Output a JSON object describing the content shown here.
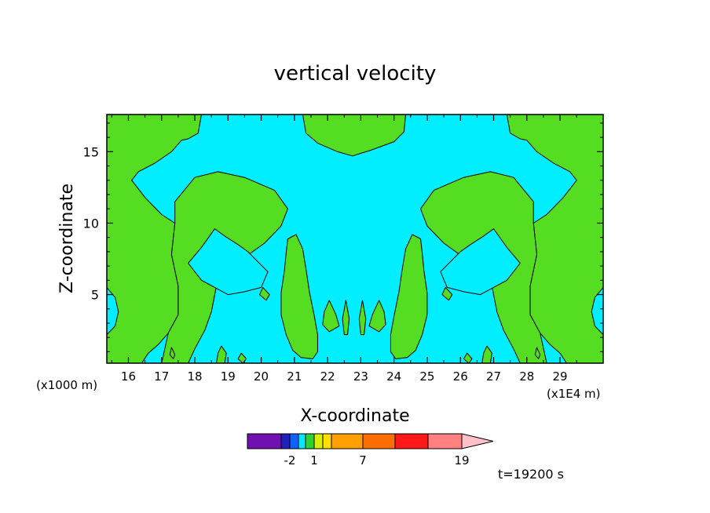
{
  "chart_data": {
    "type": "heatmap",
    "title": "vertical velocity",
    "xlabel": "X-coordinate",
    "ylabel": "Z-coordinate",
    "xlim": [
      15.35,
      30.3
    ],
    "ylim": [
      0.2,
      17.6
    ],
    "x_ticks": [
      16,
      17,
      18,
      19,
      20,
      21,
      22,
      23,
      24,
      25,
      26,
      27,
      28,
      29
    ],
    "x_tick_labels": [
      "16",
      "17",
      "18",
      "19",
      "20",
      "21",
      "22",
      "23",
      "24",
      "25",
      "26",
      "27",
      "28",
      "29"
    ],
    "y_ticks": [
      5,
      10,
      15
    ],
    "y_tick_labels": [
      "5",
      "10",
      "15"
    ],
    "x_unit_label": "(x1E4 m)",
    "y_unit_label": "(x1000 m)",
    "time_label": "t=19200 s",
    "colorbar": {
      "colors": [
        "#7010b0",
        "#2020c0",
        "#1060ff",
        "#00e8ff",
        "#30d030",
        "#d8f000",
        "#ffe000",
        "#ffa000",
        "#ff6e00",
        "#ff1818",
        "#ff8080",
        "#ffc0c8"
      ],
      "tick_labels": [
        "-2",
        "1",
        "7",
        "19"
      ]
    },
    "field_colors": {
      "cyan": "#00eeff",
      "green": "#55dd22"
    },
    "regions": [
      {
        "color": "green",
        "pts": [
          [
            15.35,
            17.6
          ],
          [
            18.2,
            17.6
          ],
          [
            18.1,
            16.3
          ],
          [
            17.8,
            15.9
          ],
          [
            17.6,
            15.8
          ],
          [
            17.3,
            15.0
          ],
          [
            16.8,
            14.2
          ],
          [
            16.3,
            13.6
          ],
          [
            16.1,
            13.0
          ],
          [
            16.5,
            11.8
          ],
          [
            17.0,
            10.6
          ],
          [
            17.4,
            10.0
          ],
          [
            17.3,
            7.8
          ],
          [
            17.5,
            5.6
          ],
          [
            17.5,
            3.6
          ],
          [
            17.2,
            2.3
          ],
          [
            16.9,
            1.5
          ],
          [
            16.6,
            0.9
          ],
          [
            16.4,
            0.2
          ],
          [
            15.35,
            0.2
          ]
        ]
      },
      {
        "color": "green",
        "pts": [
          [
            30.3,
            17.6
          ],
          [
            27.4,
            17.6
          ],
          [
            27.5,
            16.3
          ],
          [
            27.8,
            15.9
          ],
          [
            28.0,
            15.8
          ],
          [
            28.3,
            15.0
          ],
          [
            28.8,
            14.2
          ],
          [
            29.3,
            13.6
          ],
          [
            29.5,
            13.0
          ],
          [
            29.1,
            11.8
          ],
          [
            28.6,
            10.6
          ],
          [
            28.2,
            10.0
          ],
          [
            28.3,
            7.8
          ],
          [
            28.1,
            5.6
          ],
          [
            28.1,
            3.6
          ],
          [
            28.4,
            2.3
          ],
          [
            28.7,
            1.5
          ],
          [
            29.0,
            0.9
          ],
          [
            29.2,
            0.2
          ],
          [
            30.3,
            0.2
          ]
        ]
      },
      {
        "color": "cyan",
        "pts": [
          [
            15.35,
            5.5
          ],
          [
            15.6,
            4.8
          ],
          [
            15.7,
            3.8
          ],
          [
            15.6,
            2.8
          ],
          [
            15.35,
            2.2
          ]
        ]
      },
      {
        "color": "cyan",
        "pts": [
          [
            30.3,
            5.5
          ],
          [
            30.05,
            4.8
          ],
          [
            29.95,
            3.8
          ],
          [
            30.05,
            2.8
          ],
          [
            30.3,
            2.2
          ]
        ]
      },
      {
        "color": "green",
        "pts": [
          [
            17.4,
            11.5
          ],
          [
            18.0,
            13.2
          ],
          [
            18.7,
            13.6
          ],
          [
            19.5,
            13.2
          ],
          [
            20.4,
            12.3
          ],
          [
            20.8,
            11.0
          ],
          [
            20.6,
            9.8
          ],
          [
            20.1,
            8.6
          ],
          [
            19.5,
            7.6
          ],
          [
            18.9,
            7.0
          ],
          [
            18.7,
            6.2
          ],
          [
            18.6,
            5.0
          ],
          [
            18.5,
            3.8
          ],
          [
            18.3,
            2.5
          ],
          [
            18.0,
            1.2
          ],
          [
            17.8,
            0.2
          ],
          [
            17.0,
            0.2
          ],
          [
            17.2,
            2.3
          ],
          [
            17.5,
            3.6
          ],
          [
            17.5,
            5.6
          ],
          [
            17.3,
            7.8
          ],
          [
            17.4,
            10.0
          ]
        ]
      },
      {
        "color": "green",
        "pts": [
          [
            28.2,
            11.5
          ],
          [
            27.6,
            13.2
          ],
          [
            26.9,
            13.6
          ],
          [
            26.1,
            13.2
          ],
          [
            25.2,
            12.3
          ],
          [
            24.8,
            11.0
          ],
          [
            25.0,
            9.8
          ],
          [
            25.5,
            8.6
          ],
          [
            26.1,
            7.6
          ],
          [
            26.7,
            7.0
          ],
          [
            26.9,
            6.2
          ],
          [
            27.0,
            5.0
          ],
          [
            27.1,
            3.8
          ],
          [
            27.3,
            2.5
          ],
          [
            27.6,
            1.2
          ],
          [
            27.8,
            0.2
          ],
          [
            28.6,
            0.2
          ],
          [
            28.4,
            2.3
          ],
          [
            28.1,
            3.6
          ],
          [
            28.1,
            5.6
          ],
          [
            28.3,
            7.8
          ],
          [
            28.2,
            10.0
          ]
        ]
      },
      {
        "color": "cyan",
        "pts": [
          [
            17.8,
            7.2
          ],
          [
            18.2,
            8.3
          ],
          [
            18.6,
            9.6
          ],
          [
            18.9,
            9.1
          ],
          [
            19.3,
            8.5
          ],
          [
            19.6,
            8.0
          ],
          [
            19.9,
            7.3
          ],
          [
            20.2,
            6.6
          ],
          [
            20.0,
            5.5
          ],
          [
            19.5,
            5.2
          ],
          [
            19.0,
            5.0
          ],
          [
            18.6,
            5.5
          ],
          [
            18.2,
            6.0
          ]
        ]
      },
      {
        "color": "cyan",
        "pts": [
          [
            27.8,
            7.2
          ],
          [
            27.4,
            8.3
          ],
          [
            27.0,
            9.6
          ],
          [
            26.7,
            9.1
          ],
          [
            26.3,
            8.5
          ],
          [
            26.0,
            8.0
          ],
          [
            25.7,
            7.3
          ],
          [
            25.4,
            6.6
          ],
          [
            25.6,
            5.5
          ],
          [
            26.1,
            5.2
          ],
          [
            26.6,
            5.0
          ],
          [
            27.0,
            5.5
          ],
          [
            27.4,
            6.0
          ]
        ]
      },
      {
        "color": "green",
        "pts": [
          [
            21.25,
            17.6
          ],
          [
            24.35,
            17.6
          ],
          [
            24.3,
            16.4
          ],
          [
            24.0,
            15.7
          ],
          [
            23.3,
            15.1
          ],
          [
            22.75,
            14.7
          ],
          [
            22.3,
            15.0
          ],
          [
            21.7,
            15.6
          ],
          [
            21.35,
            16.3
          ]
        ]
      },
      {
        "color": "green",
        "pts": [
          [
            20.8,
            8.9
          ],
          [
            21.05,
            9.2
          ],
          [
            21.25,
            8.2
          ],
          [
            21.35,
            6.8
          ],
          [
            21.45,
            5.2
          ],
          [
            21.6,
            3.5
          ],
          [
            21.7,
            2.2
          ],
          [
            21.7,
            1.0
          ],
          [
            21.55,
            0.5
          ],
          [
            21.2,
            0.6
          ],
          [
            20.95,
            1.1
          ],
          [
            20.75,
            2.2
          ],
          [
            20.6,
            3.6
          ],
          [
            20.6,
            5.1
          ],
          [
            20.7,
            6.7
          ],
          [
            20.75,
            7.9
          ]
        ]
      },
      {
        "color": "green",
        "pts": [
          [
            24.8,
            8.9
          ],
          [
            24.55,
            9.2
          ],
          [
            24.35,
            8.2
          ],
          [
            24.25,
            6.8
          ],
          [
            24.15,
            5.2
          ],
          [
            24.0,
            3.5
          ],
          [
            23.9,
            2.2
          ],
          [
            23.9,
            1.0
          ],
          [
            24.05,
            0.5
          ],
          [
            24.4,
            0.6
          ],
          [
            24.65,
            1.1
          ],
          [
            24.85,
            2.2
          ],
          [
            25.0,
            3.6
          ],
          [
            25.0,
            5.1
          ],
          [
            24.9,
            6.7
          ],
          [
            24.85,
            7.9
          ]
        ]
      },
      {
        "color": "green",
        "pts": [
          [
            22.05,
            4.6
          ],
          [
            22.25,
            3.6
          ],
          [
            22.35,
            2.8
          ],
          [
            22.05,
            2.4
          ],
          [
            21.85,
            2.9
          ],
          [
            21.9,
            3.8
          ]
        ]
      },
      {
        "color": "green",
        "pts": [
          [
            23.55,
            4.6
          ],
          [
            23.35,
            3.6
          ],
          [
            23.25,
            2.8
          ],
          [
            23.55,
            2.4
          ],
          [
            23.75,
            2.9
          ],
          [
            23.7,
            3.8
          ]
        ]
      },
      {
        "color": "green",
        "pts": [
          [
            22.55,
            4.6
          ],
          [
            22.65,
            3.3
          ],
          [
            22.6,
            2.2
          ],
          [
            22.5,
            2.2
          ],
          [
            22.45,
            3.3
          ]
        ]
      },
      {
        "color": "green",
        "pts": [
          [
            23.05,
            4.6
          ],
          [
            23.15,
            3.3
          ],
          [
            23.1,
            2.2
          ],
          [
            23.0,
            2.2
          ],
          [
            22.95,
            3.3
          ]
        ]
      },
      {
        "color": "green",
        "pts": [
          [
            20.05,
            5.5
          ],
          [
            20.25,
            5.0
          ],
          [
            20.15,
            4.6
          ],
          [
            19.95,
            5.0
          ]
        ]
      },
      {
        "color": "green",
        "pts": [
          [
            25.55,
            5.5
          ],
          [
            25.75,
            5.0
          ],
          [
            25.65,
            4.6
          ],
          [
            25.45,
            5.0
          ]
        ]
      },
      {
        "color": "green",
        "pts": [
          [
            18.8,
            1.4
          ],
          [
            18.95,
            0.9
          ],
          [
            18.9,
            0.2
          ],
          [
            18.65,
            0.2
          ],
          [
            18.7,
            0.9
          ]
        ]
      },
      {
        "color": "green",
        "pts": [
          [
            26.8,
            1.4
          ],
          [
            26.95,
            0.9
          ],
          [
            26.9,
            0.2
          ],
          [
            26.65,
            0.2
          ],
          [
            26.7,
            0.9
          ]
        ]
      },
      {
        "color": "green",
        "pts": [
          [
            17.3,
            1.3
          ],
          [
            17.4,
            0.8
          ],
          [
            17.35,
            0.5
          ],
          [
            17.25,
            0.8
          ]
        ]
      },
      {
        "color": "green",
        "pts": [
          [
            28.3,
            1.3
          ],
          [
            28.4,
            0.8
          ],
          [
            28.35,
            0.5
          ],
          [
            28.25,
            0.8
          ]
        ]
      },
      {
        "color": "green",
        "pts": [
          [
            19.4,
            0.9
          ],
          [
            19.55,
            0.5
          ],
          [
            19.45,
            0.2
          ],
          [
            19.3,
            0.5
          ]
        ]
      },
      {
        "color": "green",
        "pts": [
          [
            26.2,
            0.9
          ],
          [
            26.35,
            0.5
          ],
          [
            26.25,
            0.2
          ],
          [
            26.1,
            0.5
          ]
        ]
      }
    ]
  }
}
